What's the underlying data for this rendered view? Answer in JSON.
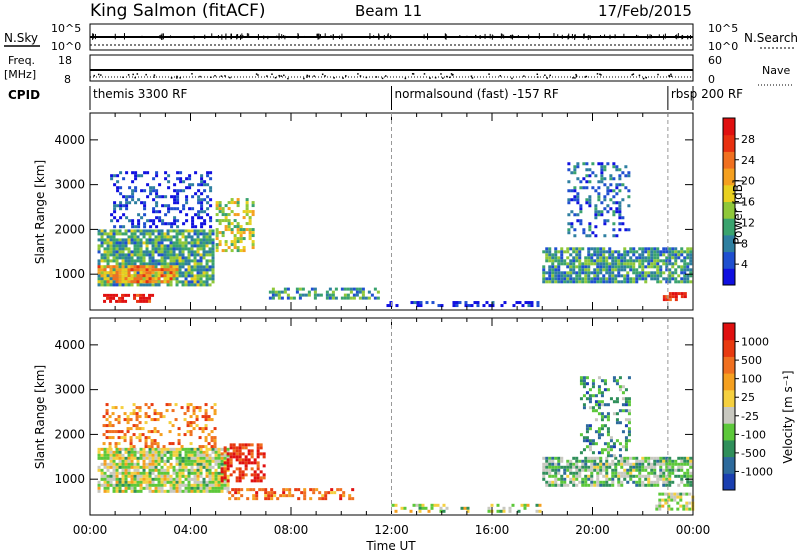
{
  "header": {
    "station": "King Salmon (fitACF)",
    "beam": "Beam 11",
    "date": "17/Feb/2015"
  },
  "strip_labels": {
    "nsky": "N.Sky",
    "nsearch": "N.Search",
    "freq_top": "Freq.",
    "freq_unit": "[MHz]",
    "nave": "Nave",
    "cpid": "CPID",
    "noise_hi": "10^5",
    "noise_lo": "10^0",
    "freq_hi": "18",
    "freq_lo": "8",
    "nave_hi": "60",
    "nave_lo": "0"
  },
  "cpid_segments": [
    {
      "label": "themis 3300 RF",
      "start_hour": 0.0,
      "end_hour": 12.0
    },
    {
      "label": "normalsound (fast) -157 RF",
      "start_hour": 12.0,
      "end_hour": 23.0
    },
    {
      "label": "rbsp 200 RF",
      "start_hour": 23.0,
      "end_hour": 24.0
    }
  ],
  "chart_data": [
    {
      "type": "heatmap",
      "ylabel": "Slant Range [km]",
      "xlabel": "Time UT",
      "xlim_hours": [
        0,
        24
      ],
      "ylim": [
        200,
        4600
      ],
      "yticks": [
        1000,
        2000,
        3000,
        4000
      ],
      "xticks": [
        "00:00",
        "04:00",
        "08:00",
        "12:00",
        "16:00",
        "20:00",
        "00:00"
      ],
      "colorbar": {
        "label": "Power [dB]",
        "ticks": [
          "4",
          "8",
          "12",
          "16",
          "20",
          "24",
          "28"
        ],
        "colors": [
          "#1010e0",
          "#1f4fd0",
          "#2e7fa0",
          "#3aa36e",
          "#8fc83a",
          "#e8d020",
          "#f5a020",
          "#f07020",
          "#e83010",
          "#e01010"
        ]
      },
      "echo_regions": [
        {
          "t0": 0.3,
          "t1": 5.0,
          "r0": 700,
          "r1": 2000,
          "level": 0.35,
          "density": 0.85
        },
        {
          "t0": 0.3,
          "t1": 3.5,
          "r0": 800,
          "r1": 1200,
          "level": 0.65,
          "density": 0.8
        },
        {
          "t0": 0.4,
          "t1": 2.5,
          "r0": 380,
          "r1": 560,
          "level": 0.95,
          "density": 0.7
        },
        {
          "t0": 0.8,
          "t1": 4.8,
          "r0": 2000,
          "r1": 3300,
          "level": 0.1,
          "density": 0.35
        },
        {
          "t0": 5.0,
          "t1": 6.5,
          "r0": 1500,
          "r1": 2700,
          "level": 0.5,
          "density": 0.5
        },
        {
          "t0": 7.0,
          "t1": 11.5,
          "r0": 450,
          "r1": 700,
          "level": 0.3,
          "density": 0.5
        },
        {
          "t0": 11.8,
          "t1": 18.0,
          "r0": 250,
          "r1": 400,
          "level": 0.05,
          "density": 0.35
        },
        {
          "t0": 18.0,
          "t1": 24.0,
          "r0": 800,
          "r1": 1600,
          "level": 0.3,
          "density": 0.8
        },
        {
          "t0": 19.0,
          "t1": 21.5,
          "r0": 1800,
          "r1": 3500,
          "level": 0.2,
          "density": 0.3
        },
        {
          "t0": 22.8,
          "t1": 23.8,
          "r0": 400,
          "r1": 600,
          "level": 0.9,
          "density": 0.6
        }
      ]
    },
    {
      "type": "heatmap",
      "ylabel": "Slant Range [km]",
      "xlabel": "Time UT",
      "xlim_hours": [
        0,
        24
      ],
      "ylim": [
        200,
        4600
      ],
      "yticks": [
        1000,
        2000,
        3000,
        4000
      ],
      "xticks": [
        "00:00",
        "04:00",
        "08:00",
        "12:00",
        "16:00",
        "20:00",
        "00:00"
      ],
      "colorbar": {
        "label": "Velocity [m s⁻¹]",
        "ticks": [
          "1000",
          "500",
          "100",
          "25",
          "-25",
          "-100",
          "-500",
          "-1000"
        ],
        "colors": [
          "#1a3fb0",
          "#2d6a9c",
          "#2f8f5a",
          "#5cc83a",
          "#c8c8c0",
          "#f5d040",
          "#f5a020",
          "#f07020",
          "#e83a10",
          "#e01010"
        ]
      },
      "echo_regions": [
        {
          "t0": 0.3,
          "t1": 5.5,
          "r0": 700,
          "r1": 1700,
          "level": 0.45,
          "density": 0.85
        },
        {
          "t0": 0.5,
          "t1": 5.0,
          "r0": 1700,
          "r1": 2700,
          "level": 0.7,
          "density": 0.35
        },
        {
          "t0": 5.2,
          "t1": 7.0,
          "r0": 900,
          "r1": 1800,
          "level": 0.92,
          "density": 0.6
        },
        {
          "t0": 5.5,
          "t1": 10.5,
          "r0": 500,
          "r1": 800,
          "level": 0.75,
          "density": 0.5
        },
        {
          "t0": 12.0,
          "t1": 18.0,
          "r0": 250,
          "r1": 450,
          "level": 0.45,
          "density": 0.3
        },
        {
          "t0": 18.0,
          "t1": 24.0,
          "r0": 800,
          "r1": 1500,
          "level": 0.35,
          "density": 0.75
        },
        {
          "t0": 19.5,
          "t1": 21.5,
          "r0": 1500,
          "r1": 3300,
          "level": 0.25,
          "density": 0.35
        },
        {
          "t0": 22.5,
          "t1": 24.0,
          "r0": 300,
          "r1": 700,
          "level": 0.45,
          "density": 0.5
        }
      ]
    }
  ]
}
